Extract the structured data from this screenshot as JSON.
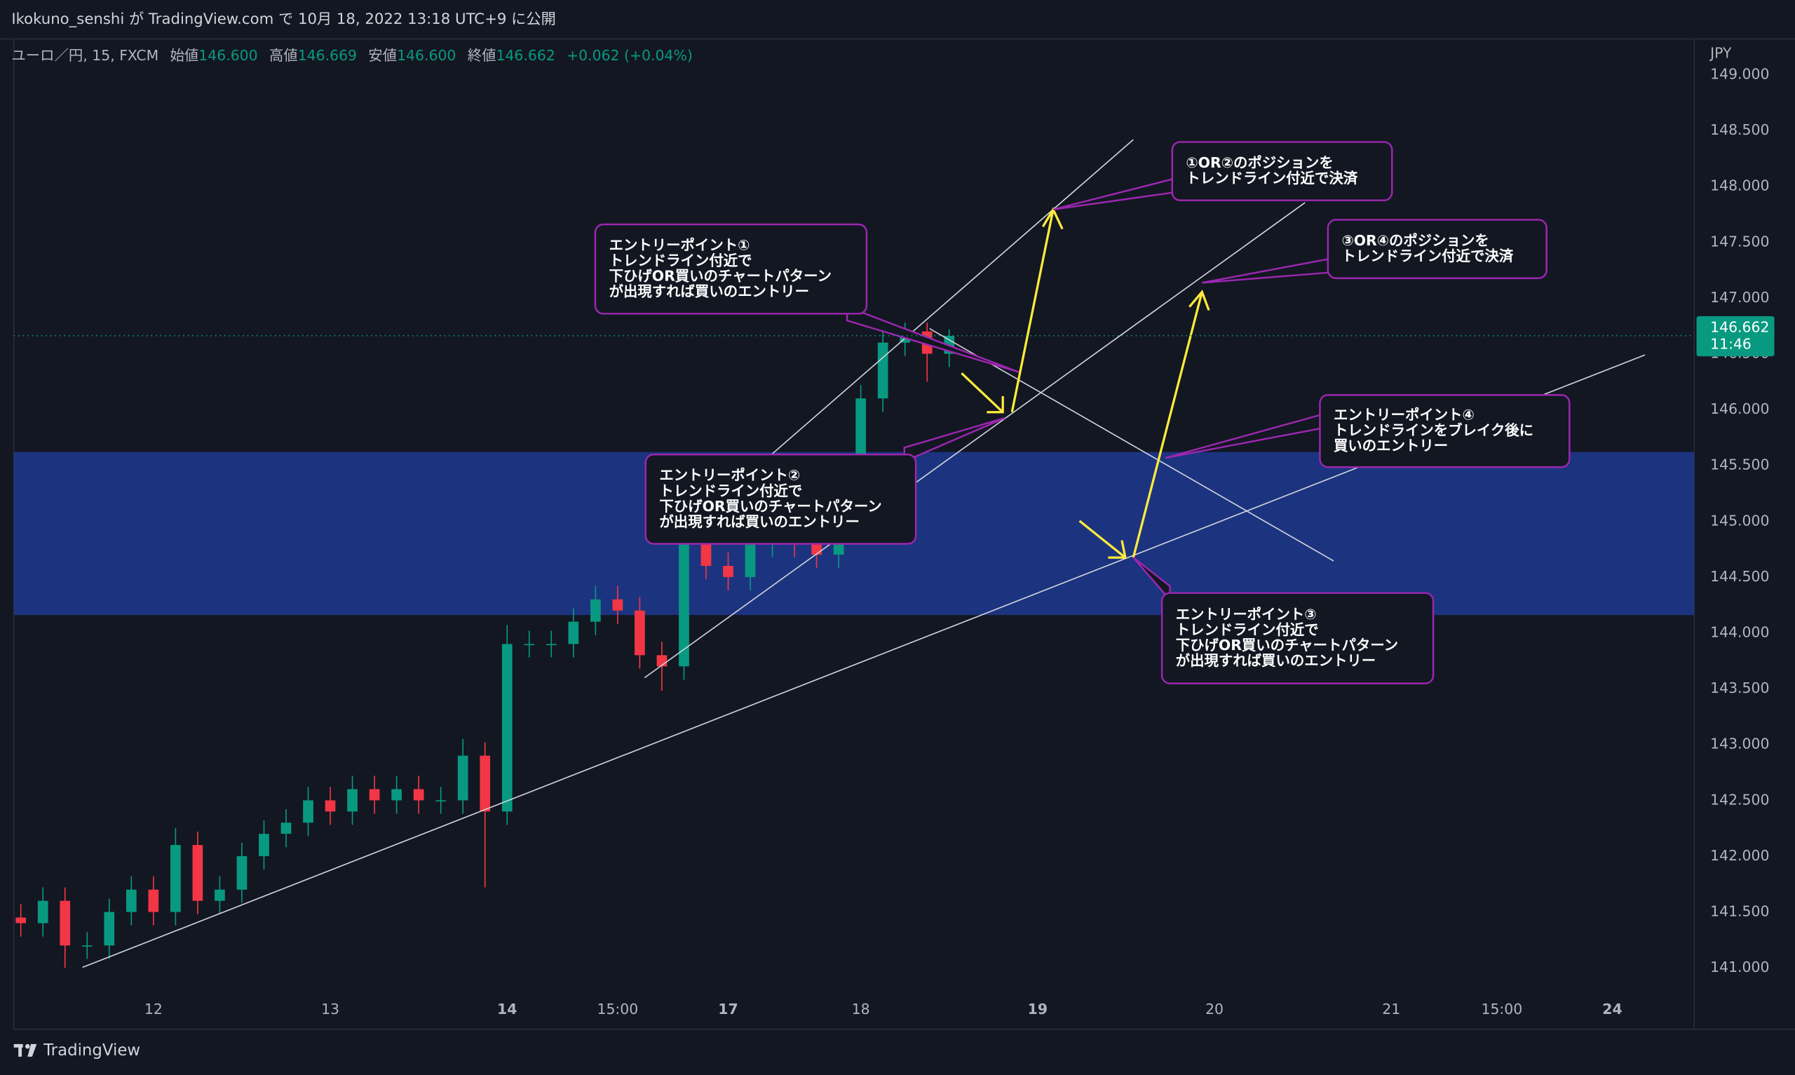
{
  "chart_data": {
    "type": "candlestick",
    "published": "Ikokuno_senshi が TradingView.com で 10月 18, 2022 13:18 UTC+9 に公開",
    "symbol": "ユーロ／円, 15, FXCM",
    "ohlc_fields": [
      {
        "label": "始値",
        "value": "146.600"
      },
      {
        "label": "高値",
        "value": "146.669"
      },
      {
        "label": "安値",
        "value": "146.600"
      },
      {
        "label": "終値",
        "value": "146.662"
      }
    ],
    "change": "+0.062 (+0.04%)",
    "currency": "JPY",
    "brand": "TradingView",
    "categories": [
      null,
      null,
      null,
      null,
      null,
      null,
      "12",
      null,
      null,
      null,
      null,
      null,
      null,
      null,
      "13",
      null,
      null,
      null,
      null,
      null,
      null,
      null,
      "14",
      null,
      null,
      null,
      null,
      "15:00",
      null,
      null,
      null,
      null,
      "17",
      null,
      null,
      null,
      null,
      null,
      "18",
      null,
      null,
      null,
      null,
      null,
      null,
      null,
      "19",
      null,
      null,
      null,
      null,
      null,
      null,
      null,
      "20",
      null,
      null,
      null,
      null,
      null,
      null,
      null,
      "21",
      null,
      null,
      null,
      null,
      "15:00",
      null,
      null,
      null,
      null,
      "24",
      null,
      null,
      null
    ],
    "open": [
      141.45,
      141.4,
      141.6,
      141.2,
      141.2,
      141.5,
      141.7,
      141.5,
      142.1,
      141.6,
      141.7,
      142.0,
      142.2,
      142.3,
      142.5,
      142.4,
      142.6,
      142.5,
      142.6,
      142.5,
      142.5,
      142.9,
      142.4,
      143.9,
      143.9,
      143.9,
      144.1,
      144.3,
      144.2,
      143.8,
      143.7,
      144.8,
      144.6,
      144.5,
      144.8,
      144.9,
      144.8,
      144.7,
      145.3,
      146.1,
      146.6,
      146.7,
      146.5,
      null,
      null,
      null,
      null,
      null,
      null,
      null,
      null,
      null,
      null,
      null,
      null,
      null,
      null,
      null,
      null,
      null,
      null,
      null,
      null,
      null,
      null,
      null,
      null,
      null,
      null,
      null,
      null,
      null,
      null,
      null,
      null,
      null
    ],
    "high": [
      141.57,
      141.72,
      141.72,
      141.32,
      141.62,
      141.82,
      141.82,
      142.25,
      142.22,
      141.82,
      142.12,
      142.32,
      142.42,
      142.62,
      142.62,
      142.72,
      142.72,
      142.72,
      142.72,
      142.62,
      143.05,
      143.02,
      144.07,
      144.02,
      144.02,
      144.22,
      144.42,
      144.42,
      144.32,
      143.92,
      144.92,
      144.92,
      144.72,
      144.92,
      145.02,
      145.02,
      144.92,
      145.42,
      146.22,
      146.72,
      146.78,
      146.78,
      146.72,
      null,
      null,
      null,
      null,
      null,
      null,
      null,
      null,
      null,
      null,
      null,
      null,
      null,
      null,
      null,
      null,
      null,
      null,
      null,
      null,
      null,
      null,
      null,
      null,
      null,
      null,
      null,
      null,
      null,
      null,
      null,
      null,
      null
    ],
    "low": [
      141.28,
      141.28,
      141.0,
      141.08,
      141.08,
      141.38,
      141.38,
      141.38,
      141.48,
      141.48,
      141.58,
      141.88,
      142.08,
      142.18,
      142.28,
      142.28,
      142.38,
      142.38,
      142.38,
      142.38,
      142.38,
      141.72,
      142.28,
      143.78,
      143.78,
      143.78,
      143.98,
      144.08,
      143.68,
      143.48,
      143.58,
      144.48,
      144.38,
      144.38,
      144.68,
      144.68,
      144.58,
      144.58,
      145.18,
      145.98,
      146.48,
      146.25,
      146.38,
      null,
      null,
      null,
      null,
      null,
      null,
      null,
      null,
      null,
      null,
      null,
      null,
      null,
      null,
      null,
      null,
      null,
      null,
      null,
      null,
      null,
      null,
      null,
      null,
      null,
      null,
      null,
      null,
      null,
      null,
      null,
      null,
      null
    ],
    "close": [
      141.4,
      141.6,
      141.2,
      141.2,
      141.5,
      141.7,
      141.5,
      142.1,
      141.6,
      141.7,
      142.0,
      142.2,
      142.3,
      142.5,
      142.4,
      142.6,
      142.5,
      142.6,
      142.5,
      142.5,
      142.9,
      142.4,
      143.9,
      143.9,
      143.9,
      144.1,
      144.3,
      144.2,
      143.8,
      143.7,
      144.8,
      144.6,
      144.5,
      144.8,
      144.9,
      144.8,
      144.7,
      145.3,
      146.1,
      146.6,
      146.7,
      146.5,
      146.66,
      null,
      null,
      null,
      null,
      null,
      null,
      null,
      null,
      null,
      null,
      null,
      null,
      null,
      null,
      null,
      null,
      null,
      null,
      null,
      null,
      null,
      null,
      null,
      null,
      null,
      null,
      null,
      null,
      null,
      null,
      null,
      null,
      null
    ],
    "up_color": "#089981",
    "down_color": "#f23645",
    "ylim": [
      140.45,
      149.32
    ],
    "yticks": [
      {
        "value": 141,
        "label": "141.000"
      },
      {
        "value": 141.5,
        "label": "141.500"
      },
      {
        "value": 142,
        "label": "142.000"
      },
      {
        "value": 142.5,
        "label": "142.500"
      },
      {
        "value": 143,
        "label": "143.000"
      },
      {
        "value": 143.5,
        "label": "143.500"
      },
      {
        "value": 144,
        "label": "144.000"
      },
      {
        "value": 144.5,
        "label": "144.500"
      },
      {
        "value": 145,
        "label": "145.000"
      },
      {
        "value": 145.5,
        "label": "145.500"
      },
      {
        "value": 146,
        "label": "146.000"
      },
      {
        "value": 146.5,
        "label": "146.500"
      },
      {
        "value": 147,
        "label": "147.000"
      },
      {
        "value": 147.5,
        "label": "147.500"
      },
      {
        "value": 148,
        "label": "148.000"
      },
      {
        "value": 148.5,
        "label": "148.500"
      },
      {
        "value": 149,
        "label": "149.000"
      }
    ],
    "grid": false,
    "zone": {
      "low": 144.16,
      "high": 145.62,
      "color": "#1f3a8f"
    },
    "last_price": {
      "value": 146.662,
      "label": "146.662",
      "countdown": "11:46",
      "color": "#089981"
    },
    "annotations": [
      [
        "エントリーポイント①",
        "トレンドライン付近で",
        "下ひげOR買いのチャートパターン",
        "が出現すれば買いのエントリー"
      ],
      [
        "エントリーポイント②",
        "トレンドライン付近で",
        "下ひげOR買いのチャートパターン",
        "が出現すれば買いのエントリー"
      ],
      [
        "エントリーポイント③",
        "トレンドライン付近で",
        "下ひげOR買いのチャートパターン",
        "が出現すれば買いのエントリー"
      ],
      [
        "エントリーポイント④",
        "トレンドラインをブレイク後に",
        "買いのエントリー"
      ],
      [
        "①OR②のポジションを",
        "トレンドライン付近で決済"
      ],
      [
        "③OR④のポジションを",
        "トレンドライン付近で決済"
      ]
    ]
  }
}
